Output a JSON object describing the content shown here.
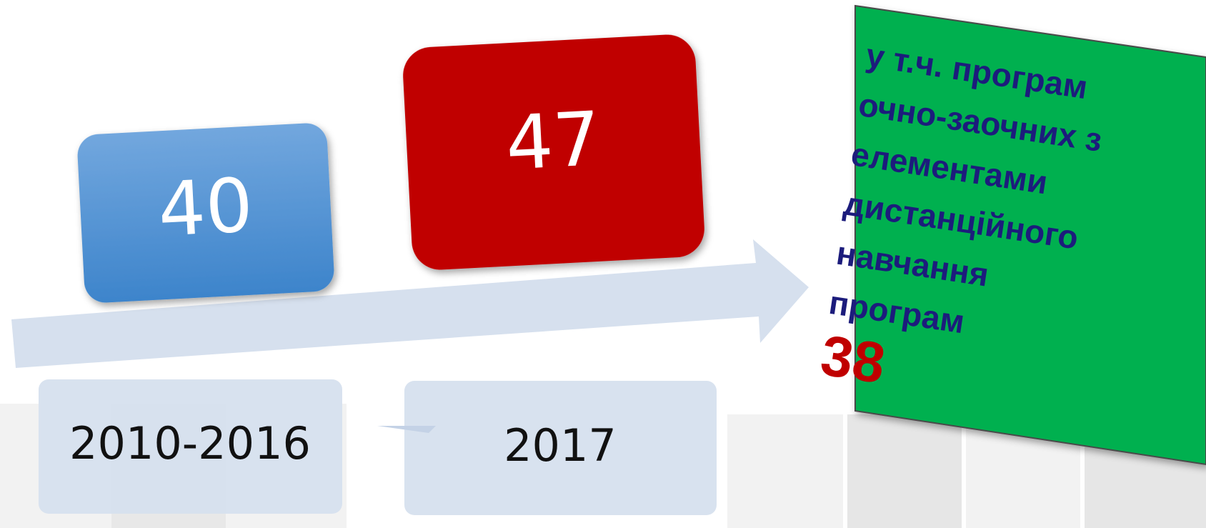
{
  "periods": [
    {
      "value": 40,
      "label": "2010-2016"
    },
    {
      "value": 47,
      "label": "2017"
    }
  ],
  "callout": {
    "lines": [
      "у т.ч. програм",
      "очно-заочних з",
      "елементами",
      "дистанційного",
      "навчання",
      "програм"
    ],
    "value": 38
  }
}
